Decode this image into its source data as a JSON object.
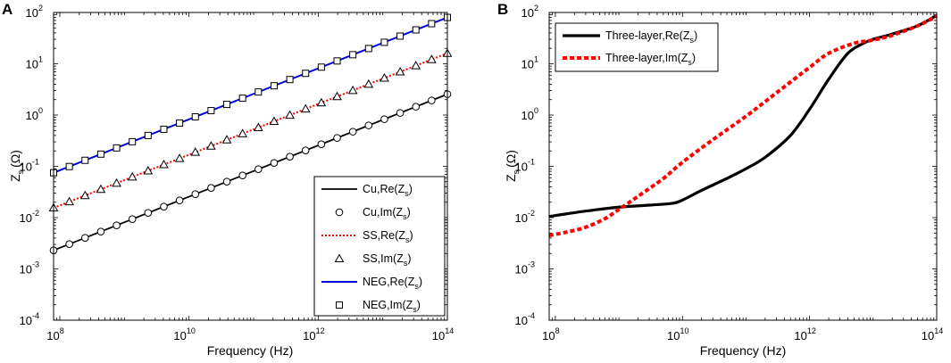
{
  "chart_data": [
    {
      "panel": "A",
      "type": "line",
      "xscale": "log",
      "yscale": "log",
      "xlabel": "Frequency (Hz)",
      "ylabel": "Z_s (Ω)",
      "xlim": [
        80000000,
        100000000000000
      ],
      "ylim": [
        0.0001,
        100
      ],
      "xticks": [
        {
          "base": "10",
          "exp": "8"
        },
        {
          "base": "10",
          "exp": "10"
        },
        {
          "base": "10",
          "exp": "12"
        },
        {
          "base": "10",
          "exp": "14"
        }
      ],
      "yticks": [
        {
          "base": "10",
          "exp": "-4"
        },
        {
          "base": "10",
          "exp": "-3"
        },
        {
          "base": "10",
          "exp": "-2"
        },
        {
          "base": "10",
          "exp": "-1"
        },
        {
          "base": "10",
          "exp": "0"
        },
        {
          "base": "10",
          "exp": "1"
        },
        {
          "base": "10",
          "exp": "2"
        }
      ],
      "legend_position": "bottom-right",
      "series": [
        {
          "name": "Cu,Re(Z_s)",
          "style": "solid-black",
          "x": [
            80000000,
            100000000000000
          ],
          "y": [
            0.0023,
            2.55
          ]
        },
        {
          "name": "Cu,Im(Z_s)",
          "style": "circle-markers",
          "x": [
            80000000,
            100000000000000
          ],
          "y": [
            0.0023,
            2.55
          ]
        },
        {
          "name": "SS,Re(Z_s)",
          "style": "dotted-red",
          "x": [
            80000000,
            100000000000000
          ],
          "y": [
            0.0155,
            16
          ]
        },
        {
          "name": "SS,Im(Z_s)",
          "style": "triangle-markers",
          "x": [
            80000000,
            100000000000000
          ],
          "y": [
            0.0155,
            16
          ]
        },
        {
          "name": "NEG,Re(Z_s)",
          "style": "solid-blue",
          "x": [
            80000000,
            100000000000000
          ],
          "y": [
            0.075,
            80
          ]
        },
        {
          "name": "NEG,Im(Z_s)",
          "style": "square-markers",
          "x": [
            80000000,
            100000000000000
          ],
          "y": [
            0.075,
            80
          ]
        }
      ]
    },
    {
      "panel": "B",
      "type": "line",
      "xscale": "log",
      "yscale": "log",
      "xlabel": "Frequency (Hz)",
      "ylabel": "Z_s (Ω)",
      "xlim": [
        80000000,
        100000000000000
      ],
      "ylim": [
        0.0001,
        100
      ],
      "xticks": [
        {
          "base": "10",
          "exp": "8"
        },
        {
          "base": "10",
          "exp": "10"
        },
        {
          "base": "10",
          "exp": "12"
        },
        {
          "base": "10",
          "exp": "14"
        }
      ],
      "yticks": [
        {
          "base": "10",
          "exp": "-4"
        },
        {
          "base": "10",
          "exp": "-3"
        },
        {
          "base": "10",
          "exp": "-2"
        },
        {
          "base": "10",
          "exp": "-1"
        },
        {
          "base": "10",
          "exp": "0"
        },
        {
          "base": "10",
          "exp": "1"
        },
        {
          "base": "10",
          "exp": "2"
        }
      ],
      "legend_position": "top-left",
      "series": [
        {
          "name": "Three-layer,Re(Z_s)",
          "style": "solid-black-thick",
          "x": [
            80000000,
            200000000,
            500000000,
            1000000000,
            3000000000,
            7000000000,
            10000000000,
            20000000000,
            50000000000,
            100000000000,
            200000000000,
            500000000000,
            1000000000000,
            2000000000000,
            4000000000000,
            7000000000000,
            10000000000000,
            20000000000000,
            50000000000000,
            100000000000000
          ],
          "y": [
            0.0105,
            0.0125,
            0.0145,
            0.016,
            0.0175,
            0.019,
            0.022,
            0.034,
            0.058,
            0.09,
            0.15,
            0.4,
            1.3,
            5,
            16,
            25,
            30,
            38,
            55,
            88
          ]
        },
        {
          "name": "Three-layer,Im(Z_s)",
          "style": "dashed-red-thick",
          "x": [
            80000000,
            150000000,
            300000000,
            600000000,
            1000000000,
            2000000000,
            5000000000,
            10000000000,
            30000000000,
            100000000000,
            300000000000,
            1000000000000,
            2000000000000,
            5000000000000,
            10000000000000,
            20000000000000,
            50000000000000,
            100000000000000
          ],
          "y": [
            0.0045,
            0.0052,
            0.0065,
            0.0095,
            0.0145,
            0.026,
            0.058,
            0.12,
            0.33,
            0.95,
            2.7,
            8.5,
            16,
            25,
            29,
            36,
            55,
            85
          ]
        }
      ]
    }
  ],
  "panels": {
    "a": {
      "label": "A",
      "xlabel": "Frequency (Hz)",
      "ylabel_main": "Z",
      "ylabel_sub": "s",
      "ylabel_unit": "(Ω)",
      "legend": [
        {
          "main": "Cu,Re(Z",
          "sub": "s",
          "close": ")"
        },
        {
          "main": "Cu,Im(Z",
          "sub": "s",
          "close": ")"
        },
        {
          "main": "SS,Re(Z",
          "sub": "s",
          "close": ")"
        },
        {
          "main": "SS,Im(Z",
          "sub": "s",
          "close": ")"
        },
        {
          "main": "NEG,Re(Z",
          "sub": "s",
          "close": ")"
        },
        {
          "main": "NEG,Im(Z",
          "sub": "s",
          "close": ")"
        }
      ]
    },
    "b": {
      "label": "B",
      "xlabel": "Frequency (Hz)",
      "ylabel_main": "Z",
      "ylabel_sub": "s",
      "ylabel_unit": "(Ω)",
      "legend": [
        {
          "main": "Three-layer,Re(Z",
          "sub": "s",
          "close": ")"
        },
        {
          "main": "Three-layer,Im(Z",
          "sub": "s",
          "close": ")"
        }
      ]
    }
  },
  "colors": {
    "black": "#000000",
    "red": "#ff0000",
    "blue": "#0000dd",
    "white": "#ffffff"
  }
}
